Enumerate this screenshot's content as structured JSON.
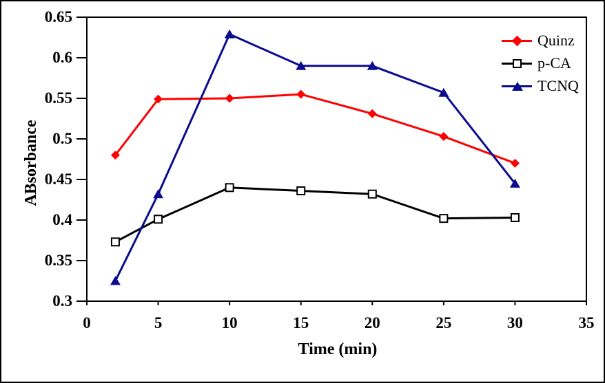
{
  "window": {
    "background": "#FFFFFF",
    "frame_color": "#000000"
  },
  "chart_data": {
    "type": "line",
    "title": "",
    "xlabel": "Time (min)",
    "ylabel": "ABsorbance",
    "x": [
      2,
      5,
      10,
      15,
      20,
      25,
      30
    ],
    "series": [
      {
        "name": "Quinz",
        "color": "#FF0000",
        "marker": "diamond",
        "values": [
          0.48,
          0.549,
          0.55,
          0.555,
          0.531,
          0.503,
          0.47
        ]
      },
      {
        "name": "p-CA",
        "color": "#000000",
        "marker": "open-square",
        "values": [
          0.373,
          0.401,
          0.44,
          0.436,
          0.432,
          0.402,
          0.403
        ]
      },
      {
        "name": "TCNQ",
        "color": "#0B0B8F",
        "marker": "triangle",
        "values": [
          0.325,
          0.432,
          0.629,
          0.59,
          0.59,
          0.557,
          0.445
        ]
      }
    ],
    "xlim": [
      0,
      35
    ],
    "ylim": [
      0.3,
      0.65
    ],
    "x_ticks": [
      0,
      5,
      10,
      15,
      20,
      25,
      30,
      35
    ],
    "x_tick_labels": [
      "0",
      "5",
      "10",
      "15",
      "20",
      "25",
      "30",
      "35"
    ],
    "y_ticks": [
      0.3,
      0.35,
      0.4,
      0.45,
      0.5,
      0.55,
      0.6,
      0.65
    ],
    "y_tick_labels": [
      "0.3",
      "0.35",
      "0.4",
      "0.45",
      "0.5",
      "0.55",
      "0.6",
      "0.65"
    ],
    "grid": false,
    "legend_position": "top-right"
  }
}
